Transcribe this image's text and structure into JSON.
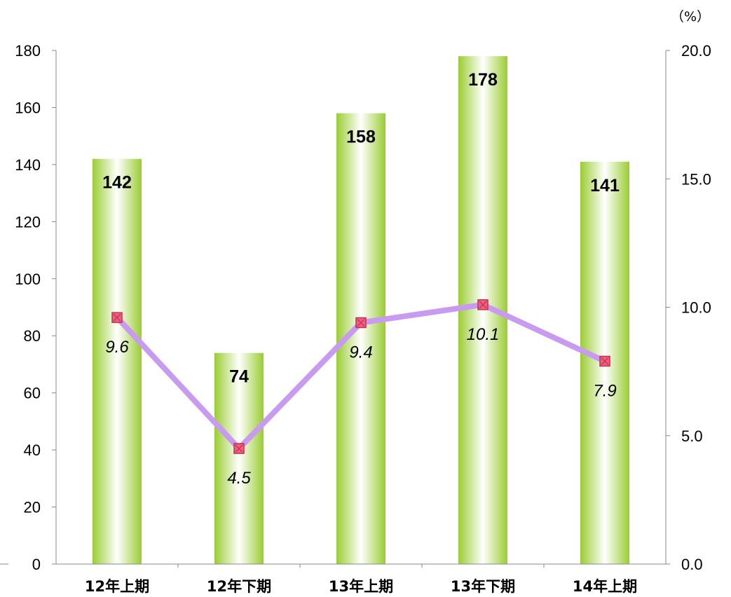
{
  "chart_data": {
    "type": "bar",
    "categories": [
      "12年上期",
      "12年下期",
      "13年上期",
      "13年下期",
      "14年上期"
    ],
    "series": [
      {
        "type": "bar",
        "axis": "left",
        "values": [
          142,
          74,
          158,
          178,
          141
        ]
      },
      {
        "type": "line",
        "axis": "right",
        "values": [
          9.6,
          4.5,
          9.4,
          10.1,
          7.9
        ]
      }
    ],
    "left_axis": {
      "min": 0,
      "max": 180,
      "step": 20,
      "ticks": [
        "0",
        "20",
        "40",
        "60",
        "80",
        "100",
        "120",
        "140",
        "160",
        "180"
      ]
    },
    "right_axis": {
      "min": 0,
      "max": 20,
      "step": 5,
      "unit": "（%）",
      "ticks": [
        "0.0",
        "5.0",
        "10.0",
        "15.0",
        "20.0"
      ]
    },
    "bar_labels": [
      "142",
      "74",
      "158",
      "178",
      "141"
    ],
    "line_labels": [
      "9.6",
      "4.5",
      "9.4",
      "10.1",
      "7.9"
    ],
    "colors": {
      "bar": "#9ACD32",
      "bar_highlight": "#ffffff",
      "line": "#C89BF0",
      "marker_fill": "#F0607A",
      "marker_edge": "#C03058"
    },
    "grid": false
  }
}
